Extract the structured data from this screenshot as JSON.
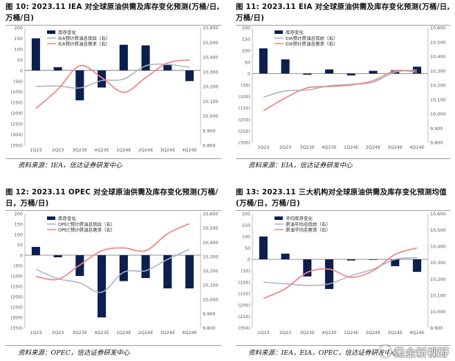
{
  "panels": [
    {
      "title": "图 10: 2023.11 IEA 对全球原油供需及库存变化预测(万桶/日，万桶/日)",
      "title_line1": "图 10: 2023.11 IEA 对全球原油供需及库存变化预测(万桶/日,",
      "title_line2": "万桶/日)",
      "source": "资料来源：IEA，信达证券研发中心"
    },
    {
      "title": "图 11: 2023.11 EIA 对全球原油供需及库存变化预测(万桶/日，万桶/日)",
      "title_line1": "图 11: 2023.11 EIA 对全球原油供需及库存变化预测(万桶/日,",
      "title_line2": "万桶/日)",
      "source": "资料来源：EIA，信达证券研发中心"
    },
    {
      "title": "图 12: 2023.11 OPEC 对全球原油供需及库存变化预测(万桶/日，万桶/日)",
      "title_line1": "图 12: 2023.11 OPEC 对全球原油供需及库存变化预测(万桶/",
      "title_line2": "日，万桶/日)",
      "source": "资料来源：OPEC，信达证券研发中心"
    },
    {
      "title": "图 13: 2023.11 三大机构对全球原油供需及库存变化预测均值(万桶/日，万桶/日)",
      "title_line1": "图 13: 2023.11 三大机构对全球原油供需及库存变化预测均值",
      "title_line2": "(万桶/日，万桶/日)",
      "source": "资料来源：IEA，EIA，OPEC，信达证券研发中心"
    }
  ],
  "watermark": "黑金新视野",
  "colors": {
    "bar": "#0c1f4e",
    "supply": "#a9b4c6",
    "demand": "#f08784",
    "axis": "#666666",
    "tick": "#555555"
  },
  "chart_data": [
    {
      "type": "bar+line",
      "categories": [
        "1Q23",
        "2Q23",
        "3Q23E",
        "4Q23E",
        "1Q24E",
        "2Q24E",
        "3Q24E",
        "4Q24E"
      ],
      "left_ylim": [
        -350,
        200
      ],
      "left_ticks": [
        "200",
        "150",
        "100",
        "50",
        "0",
        "(50)",
        "(100)",
        "(150)",
        "(200)",
        "(250)",
        "(300)",
        "(350)"
      ],
      "right_ylim": [
        9800,
        10600
      ],
      "right_ticks": [
        "10,600",
        "10,500",
        "10,400",
        "10,300",
        "10,200",
        "10,100",
        "10,000",
        "9,900",
        "9,800"
      ],
      "series": [
        {
          "name": "库存变化",
          "kind": "bar",
          "values": [
            150,
            15,
            -140,
            -80,
            120,
            117,
            25,
            -50
          ]
        },
        {
          "name": "IEA预计原油总供应（右）",
          "kind": "line",
          "values": [
            10200,
            10203,
            10190,
            10240,
            10250,
            10340,
            10350,
            10330
          ]
        },
        {
          "name": "IEA预计原油总需求（右）",
          "kind": "line",
          "values": [
            10050,
            10180,
            10340,
            10260,
            10160,
            10260,
            10360,
            10380
          ]
        }
      ]
    },
    {
      "type": "bar+line",
      "categories": [
        "1Q23",
        "2Q23",
        "3Q23E",
        "4Q23E",
        "1Q24E",
        "2Q24E",
        "3Q24E",
        "4Q24E"
      ],
      "left_ylim": [
        -300,
        200
      ],
      "left_ticks": [
        "200",
        "150",
        "100",
        "50",
        "0",
        "(50)",
        "(100)",
        "(150)",
        "(200)",
        "(250)",
        "(300)"
      ],
      "right_ylim": [
        9800,
        10600
      ],
      "right_ticks": [
        "10,600",
        "10,500",
        "10,400",
        "10,300",
        "10,200",
        "10,100",
        "10,000",
        "9,900",
        "9,800"
      ],
      "series": [
        {
          "name": "库存变化",
          "kind": "bar",
          "values": [
            110,
            62,
            -5,
            18,
            -8,
            12,
            15,
            30
          ]
        },
        {
          "name": "EIA预计原油总供给（右）",
          "kind": "line",
          "values": [
            10115,
            10160,
            10165,
            10195,
            10205,
            10220,
            10290,
            10305
          ]
        },
        {
          "name": "EIA预计原油总需求（右）",
          "kind": "line",
          "values": [
            10020,
            10110,
            10180,
            10190,
            10200,
            10230,
            10300,
            10290
          ]
        }
      ]
    },
    {
      "type": "bar+line",
      "categories": [
        "1Q23",
        "2Q23",
        "3Q23E",
        "4Q23E",
        "1Q24E",
        "2Q24E",
        "3Q24E",
        "4Q24E"
      ],
      "left_ylim": [
        -350,
        200
      ],
      "left_ticks": [
        "200",
        "150",
        "100",
        "50",
        "0",
        "(50)",
        "(100)",
        "(150)",
        "(200)",
        "(250)",
        "(300)",
        "(350)"
      ],
      "right_ylim": [
        9800,
        10600
      ],
      "right_ticks": [
        "10,600",
        "10,500",
        "10,400",
        "10,300",
        "10,200",
        "10,100",
        "10,000",
        "9,900",
        "9,800"
      ],
      "series": [
        {
          "name": "库存变化",
          "kind": "bar",
          "values": [
            40,
            -10,
            -100,
            -300,
            -125,
            -110,
            -160,
            -160
          ]
        },
        {
          "name": "OPEC预计原油总供应（右）",
          "kind": "line",
          "values": [
            10210,
            10145,
            10115,
            10050,
            10190,
            10200,
            10280,
            10350
          ]
        },
        {
          "name": "OPEC预计原油总需求（右）",
          "kind": "line",
          "values": [
            10160,
            10140,
            10240,
            10340,
            10360,
            10340,
            10460,
            10530
          ]
        }
      ]
    },
    {
      "type": "bar+line",
      "categories": [
        "1Q23",
        "2Q23",
        "3Q23E",
        "4Q23E",
        "1Q24E",
        "2Q24E",
        "3Q24E",
        "4Q24E"
      ],
      "left_ylim": [
        -300,
        200
      ],
      "left_ticks": [
        "200",
        "150",
        "100",
        "50",
        "0",
        "(50)",
        "(100)",
        "(150)",
        "(200)",
        "(250)",
        "(300)"
      ],
      "right_ylim": [
        9900,
        10600
      ],
      "right_ticks": [
        "10,600",
        "10,500",
        "10,400",
        "10,300",
        "10,200",
        "10,100",
        "10,000",
        "9,900"
      ],
      "series": [
        {
          "name": "平均库存变化",
          "kind": "bar",
          "values": [
            100,
            25,
            -75,
            -130,
            -5,
            -2,
            -30,
            -55
          ]
        },
        {
          "name": "原油平均总供给（右）",
          "kind": "line",
          "values": [
            10180,
            10170,
            10160,
            10170,
            10220,
            10260,
            10320,
            10330
          ]
        },
        {
          "name": "原油平均总需求（右）",
          "kind": "line",
          "values": [
            10080,
            10140,
            10240,
            10260,
            10210,
            10250,
            10350,
            10390
          ]
        }
      ]
    }
  ]
}
